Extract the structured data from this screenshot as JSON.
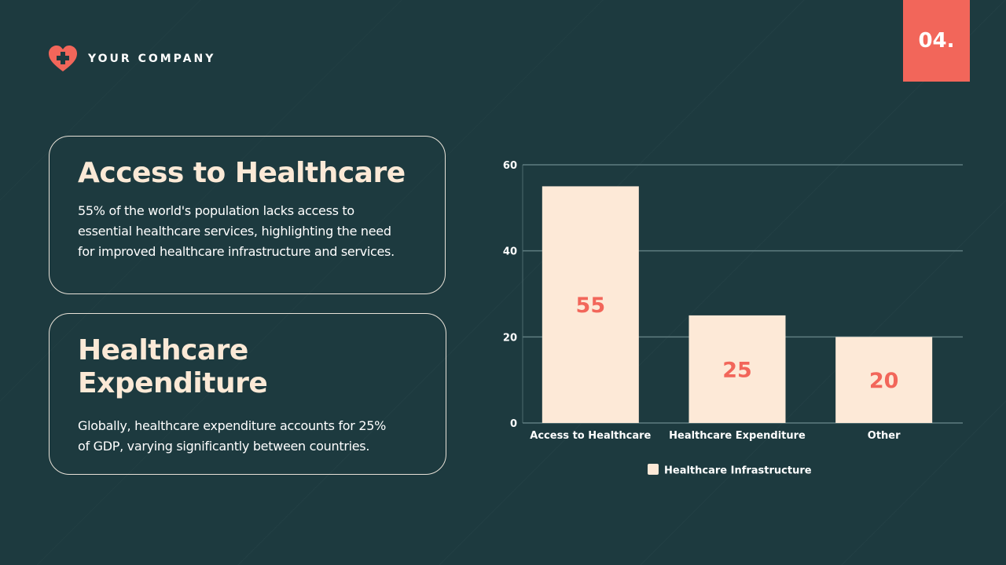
{
  "header": {
    "company": "YOUR COMPANY",
    "slide_number": "04.",
    "logo_icon": "heart-plus-icon"
  },
  "cards": [
    {
      "title": "Access to Healthcare",
      "body": "55% of the world's population lacks access to essential healthcare services, highlighting the need for improved healthcare infrastructure and services."
    },
    {
      "title": "Healthcare Expenditure",
      "body": "Globally, healthcare expenditure accounts for 25% of GDP, varying significantly between countries."
    }
  ],
  "colors": {
    "background": "#1d3a3f",
    "accent": "#f2665a",
    "bar": "#fde9d7"
  },
  "chart_data": {
    "type": "bar",
    "categories": [
      "Access to Healthcare",
      "Healthcare Expenditure",
      "Other"
    ],
    "series": [
      {
        "name": "Healthcare Infrastructure",
        "values": [
          55,
          25,
          20
        ]
      }
    ],
    "ylim": [
      0,
      60
    ],
    "yticks": [
      0,
      20,
      40,
      60
    ],
    "grid": true,
    "legend": "bottom",
    "data_labels": true
  }
}
